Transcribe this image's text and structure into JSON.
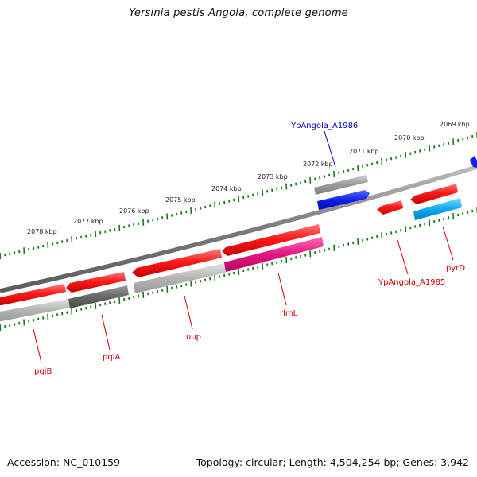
{
  "title": "Yersinia pestis Angola, complete genome",
  "footer": {
    "accession": "Accession: NC_010159",
    "summary": "Topology: circular; Length: 4,504,254 bp; Genes: 3,942"
  },
  "ruler_labels": [
    "2078 kbp",
    "2077 kbp",
    "2076 kbp",
    "2075 kbp",
    "2074 kbp",
    "2073 kbp",
    "2072 kbp",
    "2071 kbp",
    "2070 kbp",
    "2069 kbp"
  ],
  "gene_labels": {
    "pqiB": "pqiB",
    "pqiA": "pqiA",
    "uup": "uup",
    "rlmL": "rlmL",
    "a1985": "YpAngola_A1985",
    "pyrD": "pyrD",
    "a1986": "YpAngola_A1986"
  },
  "colors": {
    "backbone": "#8a8a8a",
    "tick": "#1a7a1a",
    "cds": "#ee1111",
    "label_red": "#cc0000",
    "label_blue": "#0000cc",
    "gray_light": "#b4b4b4",
    "gray_dark": "#666666",
    "magenta": "#e6157f",
    "blue": "#1020ee",
    "cyan": "#10aaee"
  }
}
